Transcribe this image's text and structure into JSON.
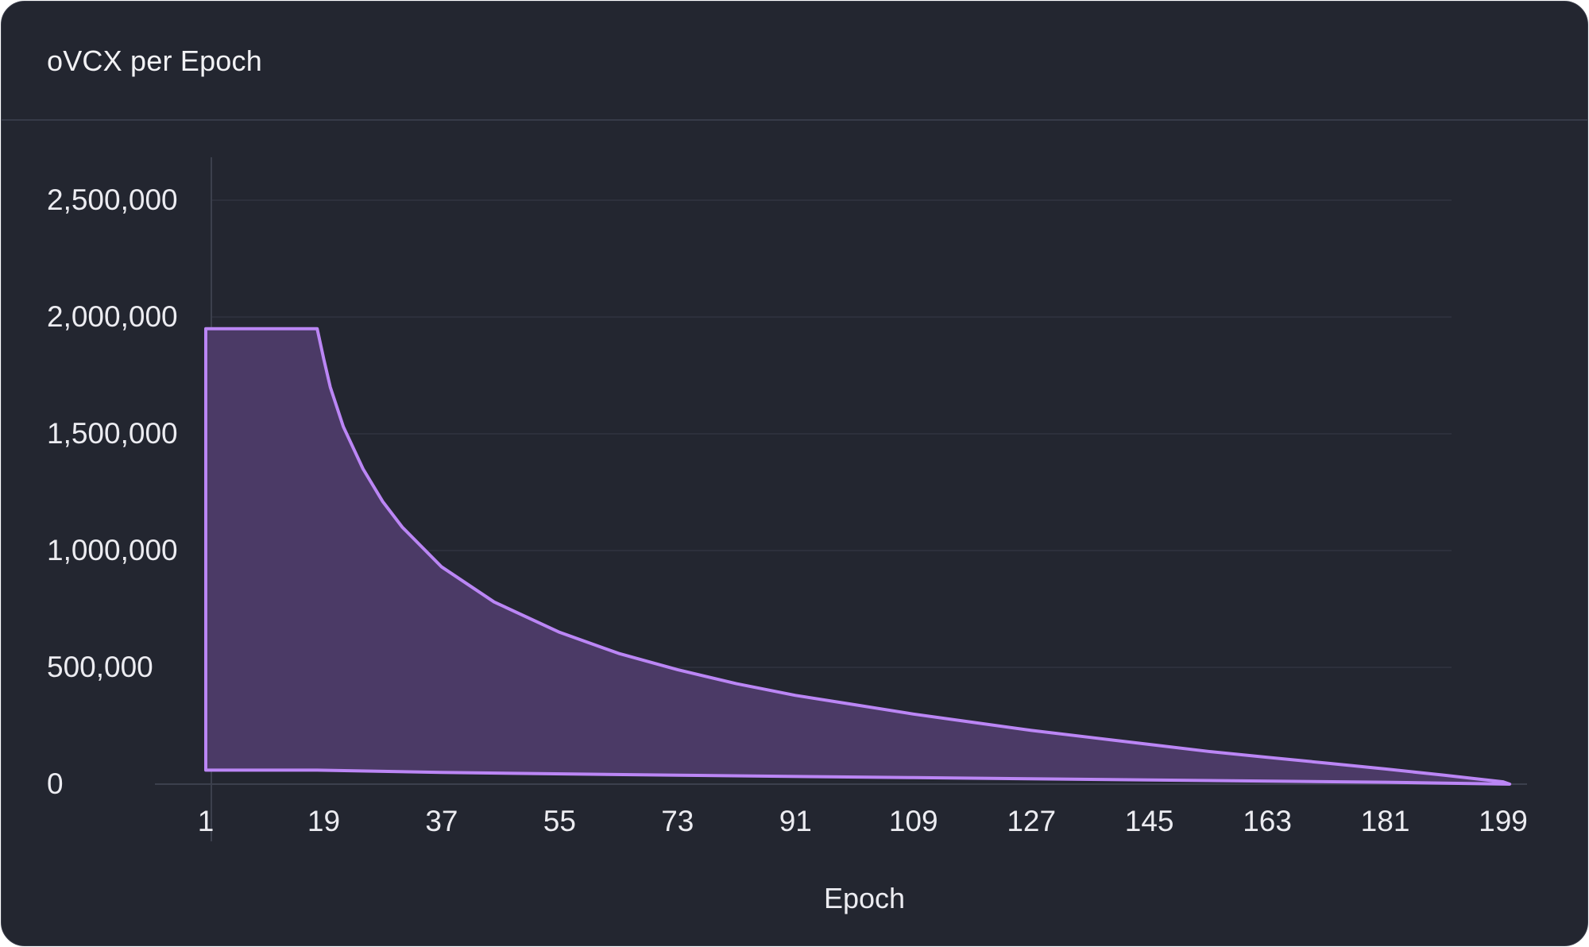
{
  "card": {
    "title": "oVCX per Epoch"
  },
  "chart_data": {
    "type": "area",
    "title": "oVCX per Epoch",
    "xlabel": "Epoch",
    "ylabel": "",
    "xlim": [
      1,
      200
    ],
    "ylim": [
      0,
      2700000
    ],
    "x_ticks": [
      1,
      19,
      37,
      55,
      73,
      91,
      109,
      127,
      145,
      163,
      181,
      199
    ],
    "y_ticks": [
      0,
      500000,
      1000000,
      1500000,
      2000000,
      2500000
    ],
    "y_tick_labels": [
      "0",
      "500,000",
      "1,000,000",
      "1,500,000",
      "2,000,000",
      "2,500,000"
    ],
    "grid": "horizontal",
    "series": [
      {
        "upper": [
          {
            "x": 1,
            "y": 1950000
          },
          {
            "x": 18,
            "y": 1950000
          },
          {
            "x": 19,
            "y": 1820000
          },
          {
            "x": 20,
            "y": 1700000
          },
          {
            "x": 22,
            "y": 1530000
          },
          {
            "x": 25,
            "y": 1350000
          },
          {
            "x": 28,
            "y": 1210000
          },
          {
            "x": 31,
            "y": 1100000
          },
          {
            "x": 37,
            "y": 930000
          },
          {
            "x": 45,
            "y": 780000
          },
          {
            "x": 55,
            "y": 650000
          },
          {
            "x": 64,
            "y": 560000
          },
          {
            "x": 73,
            "y": 490000
          },
          {
            "x": 82,
            "y": 430000
          },
          {
            "x": 91,
            "y": 380000
          },
          {
            "x": 100,
            "y": 340000
          },
          {
            "x": 109,
            "y": 300000
          },
          {
            "x": 118,
            "y": 265000
          },
          {
            "x": 127,
            "y": 230000
          },
          {
            "x": 136,
            "y": 200000
          },
          {
            "x": 145,
            "y": 170000
          },
          {
            "x": 154,
            "y": 140000
          },
          {
            "x": 163,
            "y": 115000
          },
          {
            "x": 172,
            "y": 90000
          },
          {
            "x": 181,
            "y": 65000
          },
          {
            "x": 190,
            "y": 38000
          },
          {
            "x": 199,
            "y": 10000
          },
          {
            "x": 200,
            "y": 0
          }
        ],
        "lower": [
          {
            "x": 1,
            "y": 60000
          },
          {
            "x": 18,
            "y": 60000
          },
          {
            "x": 37,
            "y": 50000
          },
          {
            "x": 73,
            "y": 38000
          },
          {
            "x": 109,
            "y": 28000
          },
          {
            "x": 145,
            "y": 18000
          },
          {
            "x": 181,
            "y": 8000
          },
          {
            "x": 200,
            "y": 0
          }
        ]
      }
    ]
  },
  "colors": {
    "background": "#232630",
    "line": "#bb86f5",
    "fill": "#4b3a66",
    "grid": "#2d303c",
    "axis": "#3c404d",
    "text": "#ececf1"
  }
}
